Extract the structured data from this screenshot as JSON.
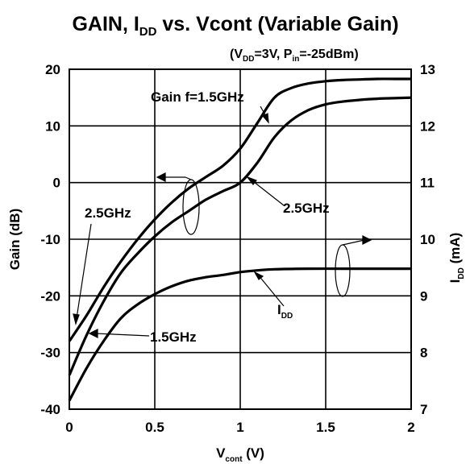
{
  "chart_data": {
    "type": "line",
    "title": {
      "main_a": "GAIN, I",
      "main_sub": "DD",
      "main_b": " vs. Vcont (Variable Gain)"
    },
    "subtitle": {
      "a": "(V",
      "s1": "DD",
      "b": "=3V, P",
      "s2": "in",
      "c": "=-25dBm)"
    },
    "xlabel": {
      "main": "V",
      "sub": "cont",
      "unit": " (V)"
    },
    "ylabel_left": "Gain (dB)",
    "ylabel_right": {
      "main": "I",
      "sub": "DD",
      "unit": " (mA)"
    },
    "xlim": [
      0,
      2
    ],
    "ylim_left": [
      -40,
      20
    ],
    "ylim_right": [
      7,
      13
    ],
    "x_ticks": [
      "0",
      "0.5",
      "1",
      "1.5",
      "2"
    ],
    "y_left_ticks": [
      "-40",
      "-30",
      "-20",
      "-10",
      "0",
      "10",
      "20"
    ],
    "y_right_ticks": [
      "7",
      "8",
      "9",
      "10",
      "11",
      "12",
      "13"
    ],
    "grid": true,
    "series": [
      {
        "axis": "left",
        "x": [
          0,
          0.1,
          0.2,
          0.3,
          0.4,
          0.5,
          0.6,
          0.7,
          0.8,
          0.9,
          1.0,
          1.1,
          1.2,
          1.3,
          1.4,
          1.5,
          1.6,
          1.7,
          1.8,
          1.9,
          2.0
        ],
        "y": [
          -28,
          -23.5,
          -18.5,
          -14,
          -10,
          -6.5,
          -3.5,
          -1,
          1,
          3,
          6,
          10.5,
          15,
          16.7,
          17.5,
          17.9,
          18.1,
          18.2,
          18.3,
          18.3,
          18.3
        ]
      },
      {
        "axis": "left",
        "x": [
          0,
          0.1,
          0.2,
          0.3,
          0.4,
          0.5,
          0.6,
          0.7,
          0.8,
          0.9,
          1.0,
          1.1,
          1.2,
          1.3,
          1.4,
          1.5,
          1.6,
          1.7,
          1.8,
          1.9,
          2.0
        ],
        "y": [
          -34,
          -27,
          -21,
          -16,
          -12.5,
          -9.5,
          -7,
          -5,
          -3,
          -1.5,
          0,
          3.5,
          8,
          11,
          12.8,
          13.8,
          14.3,
          14.6,
          14.8,
          14.9,
          15
        ]
      },
      {
        "axis": "right",
        "x": [
          0,
          0.1,
          0.2,
          0.3,
          0.4,
          0.5,
          0.6,
          0.7,
          0.8,
          0.9,
          1.0,
          1.1,
          1.2,
          1.4,
          1.6,
          1.8,
          2.0
        ],
        "y": [
          7.15,
          7.72,
          8.2,
          8.6,
          8.85,
          9.03,
          9.17,
          9.27,
          9.33,
          9.37,
          9.42,
          9.45,
          9.47,
          9.48,
          9.48,
          9.48,
          9.48
        ]
      }
    ],
    "annotations": {
      "gain15": "Gain f=1.5GHz",
      "lbl25_right": "2.5GHz",
      "lbl25_left": "2.5GHz",
      "lbl15": "1.5GHz",
      "idd_main": "I",
      "idd_sub": "DD"
    }
  }
}
